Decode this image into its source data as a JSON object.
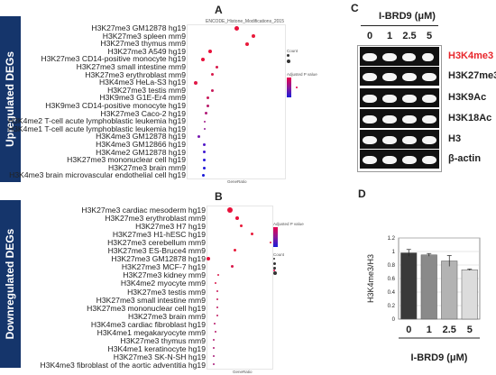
{
  "panels": {
    "A": "A",
    "B": "B",
    "C": "C",
    "D": "D"
  },
  "side_labels": {
    "upregulated": "Upregulated DEGs",
    "downregulated": "Downregulated DEGs"
  },
  "panel_a": {
    "title": "ENCODE_Histone_Modifications_2015",
    "legend_count_title": "Count",
    "legend_p_title": "Adjusted P value",
    "xlabel": "GeneRatio",
    "rows": [
      "H3K27me3 GM12878 hg19",
      "H3K27me3 spleen mm9",
      "H3K27me3 thymus mm9",
      "H3K27me3 A549 hg19",
      "H3K27me3 CD14-positive monocyte hg19",
      "H3K27me3 small intestine mm9",
      "H3K27me3 erythroblast mm9",
      "H3K4me3 HeLa-S3 hg19",
      "H3K27me3 testis mm9",
      "H3K9me3 G1E-Er4 mm9",
      "H3K9me3 CD14-positive monocyte hg19",
      "H3K27me3 Caco-2 hg19",
      "H3K4me2 T-cell acute lymphoblastic leukemia hg19",
      "H3K4me1 T-cell acute lymphoblastic leukemia hg19",
      "H3K4me3 GM12878 hg19",
      "H3K4me3 GM12866 hg19",
      "H3K4me2 GM12878 hg19",
      "H3K27me3 mononuclear cell hg19",
      "H3K27me3 brain mm9",
      "H3K4me3 brain microvascular endothelial cell hg19"
    ]
  },
  "panel_b": {
    "legend_count_title": "Count",
    "legend_p_title": "Adjusted P value",
    "xlabel": "GeneRatio",
    "rows": [
      "H3K27me3 cardiac mesoderm hg19",
      "H3K27me3 erythroblast mm9",
      "H3K27me3 H7 hg19",
      "H3K27me3 H1-hESC hg19",
      "H3K27me3 cerebellum mm9",
      "H3K27me3 ES-Bruce4 mm9",
      "H3K27me3 GM12878 hg19",
      "H3K27me3 MCF-7 hg19",
      "H3K27me3 kidney mm9",
      "H3K4me2 myocyte mm9",
      "H3K27me3 testis mm9",
      "H3K27me3 small intestine mm9",
      "H3K27me3 mononuclear cell hg19",
      "H3K27me3 brain mm9",
      "H3K4me3 cardiac fibroblast hg19",
      "H3K4me1 megakaryocyte mm9",
      "H3K27me3 thymus mm9",
      "H3K4me1 keratinocyte hg19",
      "H3K27me3 SK-N-SH hg19",
      "H3K4me3 fibroblast of the aortic adventitia hg19"
    ]
  },
  "panel_c": {
    "treatment": "I-BRD9  (μM)",
    "concentrations": [
      "0",
      "1",
      "2.5",
      "5"
    ],
    "blots": [
      "H3K4me3",
      "H3K27me3",
      "H3K9Ac",
      "H3K18Ac",
      "H3",
      "β-actin"
    ],
    "highlight_color": "#e8262b"
  },
  "chart_data": {
    "type": "bar",
    "categories": [
      "0",
      "1",
      "2.5",
      "5"
    ],
    "values": [
      0.98,
      0.95,
      0.86,
      0.73
    ],
    "errors": [
      0.05,
      0.02,
      0.08,
      0.01
    ],
    "ylabel": "H3K4me3/H3",
    "xlabel": "I-BRD9  (μM)",
    "ylim": [
      0,
      1.2
    ],
    "yticks": [
      "0",
      "0.2",
      "0.4",
      "0.6",
      "0.8",
      "1",
      "1.2"
    ],
    "colors": [
      "#3a3a3a",
      "#8a8a8a",
      "#b3b3b3",
      "#dcdcdc"
    ]
  }
}
